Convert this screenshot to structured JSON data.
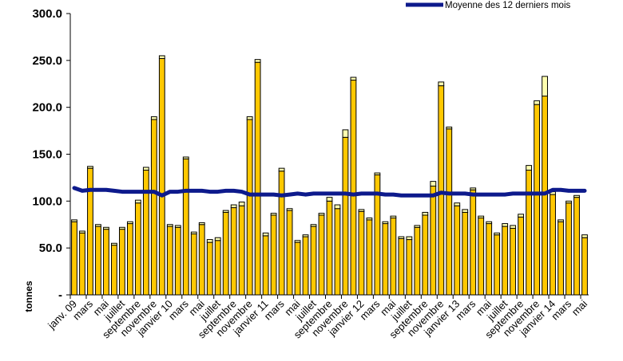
{
  "chart_data": {
    "type": "bar",
    "stacked": true,
    "title": "",
    "xlabel": "",
    "ylabel": "tonnes",
    "ylim": [
      0,
      300
    ],
    "yticks": [
      0,
      50,
      100,
      150,
      200,
      250,
      300
    ],
    "ytick_labels": [
      "-",
      "50.0",
      "100.0",
      "150.0",
      "200.0",
      "250.0",
      "300.0"
    ],
    "grid": false,
    "legend_position": "top-right",
    "legend": [
      {
        "name": "Moyenne des 12 derniers mois",
        "color": "#0d1a8c"
      }
    ],
    "colors": {
      "bar_main": "#ffc800",
      "bar_top": "#ffffb0",
      "average_line": "#0d1a8c"
    },
    "categories": [
      "janv. 09",
      "",
      "mars",
      "",
      "mai",
      "",
      "juillet",
      "",
      "septembre",
      "",
      "novembre",
      "",
      "janvier 10",
      "",
      "mars",
      "",
      "mai",
      "",
      "juillet",
      "",
      "septembre",
      "",
      "novembre",
      "",
      "janvier 11",
      "",
      "mars",
      "",
      "mai",
      "",
      "juillet",
      "",
      "septembre",
      "",
      "novembre",
      "",
      "janvier 12",
      "",
      "mars",
      "",
      "mai",
      "",
      "juillet",
      "",
      "septembre",
      "",
      "novembre",
      "",
      "janvier 13",
      "",
      "mars",
      "",
      "mai",
      "",
      "juillet",
      "",
      "septembre",
      "",
      "novembre",
      "",
      "janvier 14",
      "",
      "mars",
      "",
      "mai"
    ],
    "series": [
      {
        "values": [
          78,
          66,
          135,
          73,
          70,
          53,
          70,
          76,
          98,
          133,
          187,
          252,
          73,
          72,
          145,
          65,
          75,
          56,
          58,
          88,
          93,
          95,
          187,
          248,
          63,
          85,
          132,
          90,
          56,
          62,
          73,
          85,
          100,
          92,
          168,
          229,
          89,
          80,
          128,
          76,
          82,
          60,
          59,
          72,
          85,
          116,
          223,
          177,
          95,
          88,
          112,
          82,
          76,
          64,
          73,
          71,
          83,
          133,
          203,
          212,
          107,
          78,
          98,
          104,
          61
        ]
      },
      {
        "values": [
          2,
          2,
          2,
          2,
          2,
          2,
          2,
          2,
          3,
          3,
          3,
          3,
          2,
          2,
          2,
          2,
          2,
          3,
          3,
          2,
          3,
          4,
          3,
          3,
          3,
          2,
          3,
          2,
          2,
          2,
          2,
          2,
          4,
          4,
          8,
          3,
          2,
          2,
          2,
          2,
          2,
          2,
          3,
          2,
          3,
          5,
          4,
          2,
          3,
          3,
          2,
          2,
          2,
          2,
          3,
          3,
          3,
          5,
          4,
          21,
          3,
          2,
          2,
          2,
          3
        ]
      }
    ],
    "average_values": [
      114,
      111,
      112,
      112,
      112,
      111,
      110,
      110,
      110,
      110,
      110,
      106,
      110,
      110,
      111,
      111,
      111,
      110,
      110,
      111,
      111,
      110,
      107,
      107,
      107,
      107,
      106,
      107,
      108,
      107,
      108,
      108,
      108,
      108,
      108,
      107,
      108,
      108,
      108,
      107,
      107,
      106,
      106,
      106,
      106,
      106,
      109,
      108,
      108,
      108,
      107,
      107,
      107,
      107,
      107,
      108,
      108,
      108,
      108,
      108,
      112,
      112,
      111,
      111,
      111
    ]
  }
}
